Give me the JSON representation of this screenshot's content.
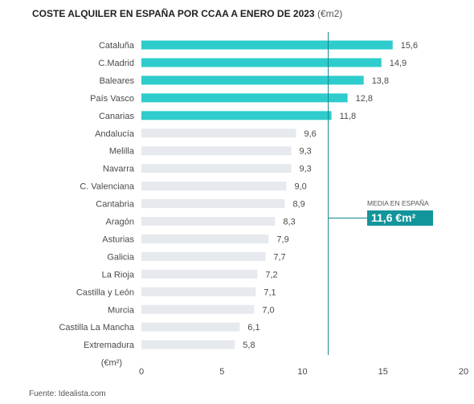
{
  "title": {
    "main": "COSTE ALQUILER EN ESPAÑA POR CCAA A ENERO DE 2023",
    "unit": "(€m2)"
  },
  "source": "Fuente: Idealista.com",
  "chart_data": {
    "type": "bar",
    "orientation": "horizontal",
    "categories": [
      "Cataluña",
      "C.Madrid",
      "Baleares",
      "País Vasco",
      "Canarias",
      "Andalucía",
      "Melilla",
      "Navarra",
      "C. Valenciana",
      "Cantabria",
      "Aragón",
      "Asturias",
      "Galicia",
      "La Rioja",
      "Castilla y León",
      "Murcia",
      "Castilla La Mancha",
      "Extremadura"
    ],
    "values": [
      15.6,
      14.9,
      13.8,
      12.8,
      11.8,
      9.6,
      9.3,
      9.3,
      9.0,
      8.9,
      8.3,
      7.9,
      7.7,
      7.2,
      7.1,
      7.0,
      6.1,
      5.8
    ],
    "value_labels": [
      "15,6",
      "14,9",
      "13,8",
      "12,8",
      "11,8",
      "9,6",
      "9,3",
      "9,3",
      "9,0",
      "8,9",
      "8,3",
      "7,9",
      "7,7",
      "7,2",
      "7,1",
      "7,0",
      "6,1",
      "5,8"
    ],
    "highlight_count": 5,
    "xlim": [
      0,
      20
    ],
    "xticks": [
      0,
      5,
      10,
      15,
      20
    ],
    "axis_unit_label": "(€m²)",
    "reference_line": {
      "value": 11.6,
      "caption": "MEDIA EN ESPAÑA",
      "label": "11,6 €m²"
    },
    "colors": {
      "highlight": "#2ecccc",
      "default": "#e6e9ee",
      "reference": "#15868f",
      "reference_box": "#12959a"
    },
    "grid": false
  }
}
